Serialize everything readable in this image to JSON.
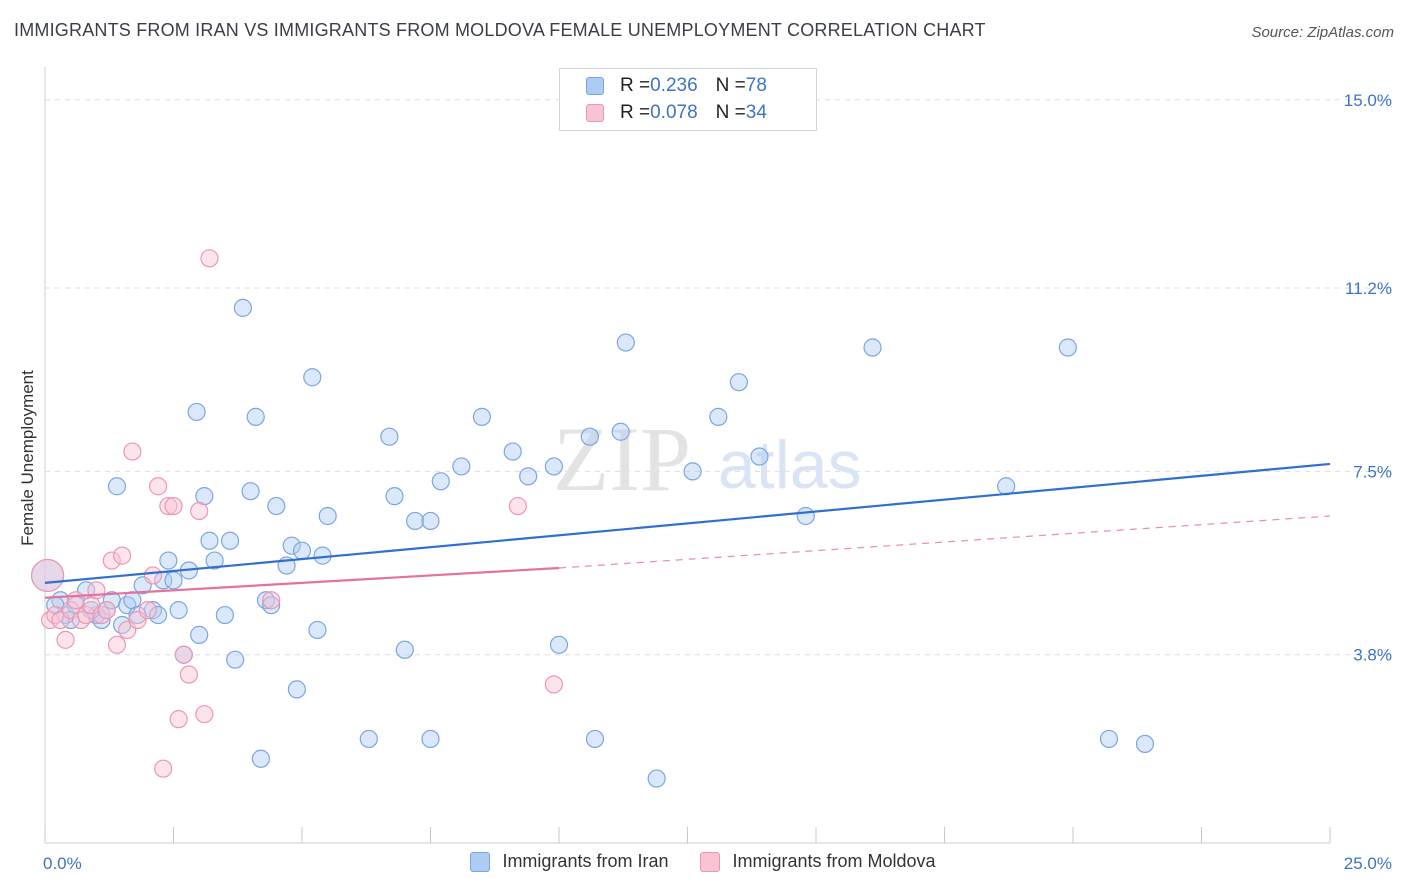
{
  "title": "IMMIGRANTS FROM IRAN VS IMMIGRANTS FROM MOLDOVA FEMALE UNEMPLOYMENT CORRELATION CHART",
  "source": "Source: ZipAtlas.com",
  "colors": {
    "iran_fill": "#aecbf2",
    "iran_stroke": "#7aa6e0",
    "iran_line": "#2f6fcf",
    "moldova_fill": "#f8c4d4",
    "moldova_stroke": "#ec97b2",
    "moldova_line": "#e4729b",
    "axis_text": "#3c74c4",
    "grid": "#dddddd"
  },
  "legend": {
    "iran": {
      "r_label": "R = ",
      "r_value": "0.236",
      "n_label": "N = ",
      "n_value": "78"
    },
    "moldova": {
      "r_label": "R = ",
      "r_value": "0.078",
      "n_label": "N = ",
      "n_value": "34"
    }
  },
  "watermark": {
    "zip": "ZIP",
    "atlas": "atlas"
  },
  "chart_data": {
    "type": "scatter",
    "title": "IMMIGRANTS FROM IRAN VS IMMIGRANTS FROM MOLDOVA FEMALE UNEMPLOYMENT CORRELATION CHART",
    "xlabel": "",
    "ylabel": "Female Unemployment",
    "xlim": [
      0,
      25
    ],
    "ylim": [
      0,
      15.5
    ],
    "x_tick_labels": {
      "left": "0.0%",
      "right": "25.0%"
    },
    "y_ticks": [
      {
        "value": 3.8,
        "label": "3.8%"
      },
      {
        "value": 7.5,
        "label": "7.5%"
      },
      {
        "value": 11.2,
        "label": "11.2%"
      },
      {
        "value": 15.0,
        "label": "15.0%"
      }
    ],
    "series": [
      {
        "name": "Immigrants from Iran",
        "color": "#aecbf2",
        "trend": {
          "x": [
            0,
            25
          ],
          "y": [
            5.25,
            7.65
          ],
          "style": "solid"
        },
        "points": [
          [
            0.05,
            5.4
          ],
          [
            0.3,
            4.9
          ],
          [
            0.4,
            4.6
          ],
          [
            0.5,
            4.5
          ],
          [
            0.6,
            4.8
          ],
          [
            0.8,
            5.1
          ],
          [
            1.0,
            4.6
          ],
          [
            1.1,
            4.5
          ],
          [
            1.2,
            4.7
          ],
          [
            1.3,
            4.9
          ],
          [
            1.4,
            7.2
          ],
          [
            1.5,
            4.4
          ],
          [
            1.6,
            4.8
          ],
          [
            1.7,
            4.9
          ],
          [
            1.8,
            4.6
          ],
          [
            1.9,
            5.2
          ],
          [
            2.1,
            4.7
          ],
          [
            2.2,
            4.6
          ],
          [
            2.3,
            5.3
          ],
          [
            2.4,
            5.7
          ],
          [
            2.5,
            5.3
          ],
          [
            2.6,
            4.7
          ],
          [
            2.7,
            3.8
          ],
          [
            2.8,
            5.5
          ],
          [
            2.95,
            8.7
          ],
          [
            3.0,
            4.2
          ],
          [
            3.1,
            7.0
          ],
          [
            3.2,
            6.1
          ],
          [
            3.3,
            5.7
          ],
          [
            3.5,
            4.6
          ],
          [
            3.6,
            6.1
          ],
          [
            3.7,
            3.7
          ],
          [
            3.85,
            10.8
          ],
          [
            4.0,
            7.1
          ],
          [
            4.1,
            8.6
          ],
          [
            4.2,
            1.7
          ],
          [
            4.3,
            4.9
          ],
          [
            4.4,
            4.8
          ],
          [
            4.5,
            6.8
          ],
          [
            4.7,
            5.6
          ],
          [
            4.8,
            6.0
          ],
          [
            4.9,
            3.1
          ],
          [
            5.0,
            5.9
          ],
          [
            5.2,
            9.4
          ],
          [
            5.3,
            4.3
          ],
          [
            5.4,
            5.8
          ],
          [
            5.5,
            6.6
          ],
          [
            6.3,
            2.1
          ],
          [
            6.7,
            8.2
          ],
          [
            6.8,
            7.0
          ],
          [
            7.0,
            3.9
          ],
          [
            7.2,
            6.5
          ],
          [
            7.5,
            2.1
          ],
          [
            7.5,
            6.5
          ],
          [
            7.7,
            7.3
          ],
          [
            8.1,
            7.6
          ],
          [
            8.5,
            8.6
          ],
          [
            9.1,
            7.9
          ],
          [
            9.4,
            7.4
          ],
          [
            9.9,
            7.6
          ],
          [
            10.0,
            4.0
          ],
          [
            10.6,
            8.2
          ],
          [
            10.7,
            2.1
          ],
          [
            11.2,
            8.3
          ],
          [
            11.3,
            10.1
          ],
          [
            11.9,
            1.3
          ],
          [
            12.6,
            7.5
          ],
          [
            13.1,
            8.6
          ],
          [
            13.5,
            9.3
          ],
          [
            13.9,
            7.8
          ],
          [
            14.8,
            6.6
          ],
          [
            16.1,
            10.0
          ],
          [
            18.7,
            7.2
          ],
          [
            19.9,
            10.0
          ],
          [
            20.7,
            2.1
          ],
          [
            21.4,
            2.0
          ],
          [
            0.2,
            4.8
          ],
          [
            0.9,
            4.7
          ]
        ]
      },
      {
        "name": "Immigrants from Moldova",
        "color": "#f8c4d4",
        "trend": {
          "x": [
            0,
            10
          ],
          "y": [
            4.95,
            5.55
          ],
          "style": "solid"
        },
        "trend_extension": {
          "x": [
            10,
            25
          ],
          "y": [
            5.55,
            6.6
          ],
          "style": "dashed"
        },
        "points": [
          [
            0.05,
            5.4
          ],
          [
            0.1,
            4.5
          ],
          [
            0.2,
            4.6
          ],
          [
            0.3,
            4.5
          ],
          [
            0.4,
            4.1
          ],
          [
            0.5,
            4.7
          ],
          [
            0.6,
            4.9
          ],
          [
            0.7,
            4.5
          ],
          [
            0.8,
            4.6
          ],
          [
            0.9,
            4.8
          ],
          [
            1.0,
            5.1
          ],
          [
            1.1,
            4.6
          ],
          [
            1.2,
            4.7
          ],
          [
            1.3,
            5.7
          ],
          [
            1.4,
            4.0
          ],
          [
            1.5,
            5.8
          ],
          [
            1.6,
            4.3
          ],
          [
            1.7,
            7.9
          ],
          [
            1.8,
            4.5
          ],
          [
            2.0,
            4.7
          ],
          [
            2.1,
            5.4
          ],
          [
            2.2,
            7.2
          ],
          [
            2.3,
            1.5
          ],
          [
            2.4,
            6.8
          ],
          [
            2.5,
            6.8
          ],
          [
            2.6,
            2.5
          ],
          [
            2.7,
            3.8
          ],
          [
            2.8,
            3.4
          ],
          [
            3.0,
            6.7
          ],
          [
            3.1,
            2.6
          ],
          [
            3.2,
            11.8
          ],
          [
            4.4,
            4.9
          ],
          [
            9.2,
            6.8
          ],
          [
            9.9,
            3.2
          ]
        ]
      }
    ]
  },
  "bottom_legend": {
    "iran": "Immigrants from Iran",
    "moldova": "Immigrants from Moldova"
  }
}
